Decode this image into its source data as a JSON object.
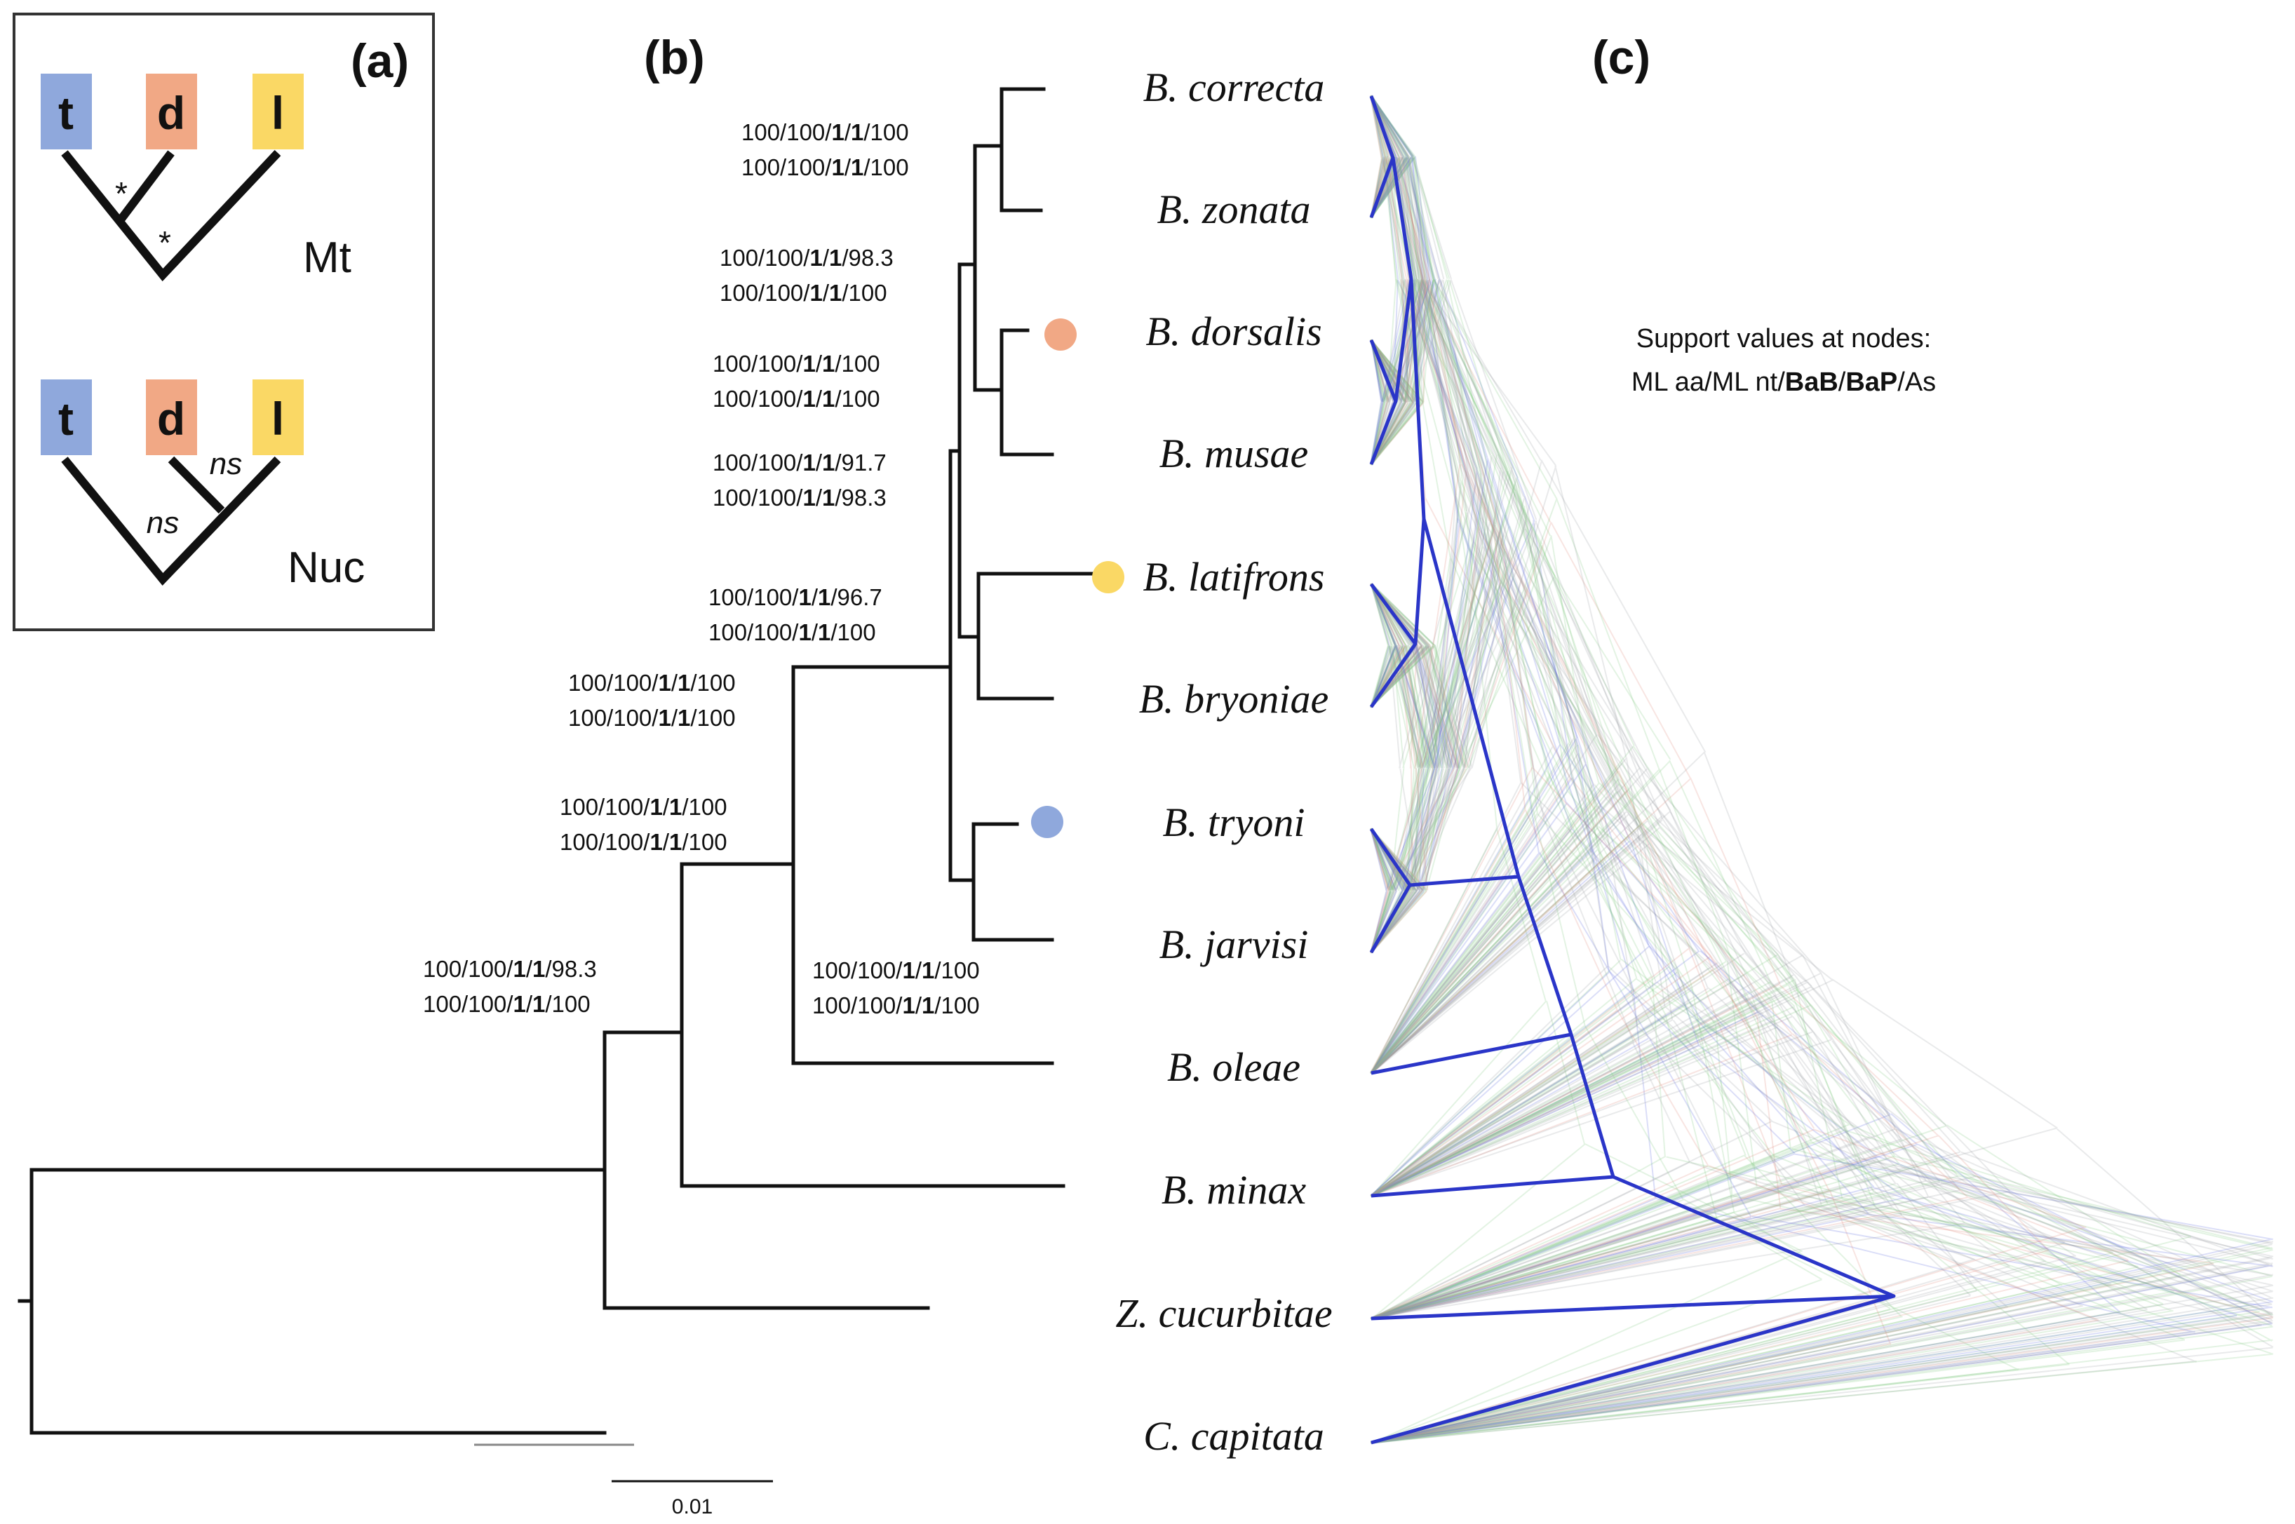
{
  "panels": {
    "a": "(a)",
    "b": "(b)",
    "c": "(c)"
  },
  "inset": {
    "mt_label": "Mt",
    "nuc_label": "Nuc",
    "boxes": [
      {
        "letter": "t",
        "color": "#8fa8dc"
      },
      {
        "letter": "d",
        "color": "#f1a885"
      },
      {
        "letter": "l",
        "color": "#fad865"
      }
    ],
    "mt_marks": [
      "*",
      "*"
    ],
    "nuc_marks": [
      "ns",
      "ns"
    ]
  },
  "taxa": [
    "B. correcta",
    "B. zonata",
    "B. dorsalis",
    "B. musae",
    "B. latifrons",
    "B. bryoniae",
    "B. tryoni",
    "B. jarvisi",
    "B. oleae",
    "B. minax",
    "Z. cucurbitae",
    "C. capitata"
  ],
  "supports": [
    {
      "line1": [
        "100/100/",
        "1",
        "/",
        "1",
        "/100"
      ],
      "line2": [
        "100/100/",
        "1",
        "/",
        "1",
        "/100"
      ]
    },
    {
      "line1": [
        "100/100/",
        "1",
        "/",
        "1",
        "/98.3"
      ],
      "line2": [
        "100/100/",
        "1",
        "/",
        "1",
        "/100"
      ]
    },
    {
      "line1": [
        "100/100/",
        "1",
        "/",
        "1",
        "/100"
      ],
      "line2": [
        "100/100/",
        "1",
        "/",
        "1",
        "/100"
      ]
    },
    {
      "line1": [
        "100/100/",
        "1",
        "/",
        "1",
        "/91.7"
      ],
      "line2": [
        "100/100/",
        "1",
        "/",
        "1",
        "/98.3"
      ]
    },
    {
      "line1": [
        "100/100/",
        "1",
        "/",
        "1",
        "/96.7"
      ],
      "line2": [
        "100/100/",
        "1",
        "/",
        "1",
        "/100"
      ]
    },
    {
      "line1": [
        "100/100/",
        "1",
        "/",
        "1",
        "/100"
      ],
      "line2": [
        "100/100/",
        "1",
        "/",
        "1",
        "/100"
      ]
    },
    {
      "line1": [
        "100/100/",
        "1",
        "/",
        "1",
        "/100"
      ],
      "line2": [
        "100/100/",
        "1",
        "/",
        "1",
        "/100"
      ]
    },
    {
      "line1": [
        "100/100/",
        "1",
        "/",
        "1",
        "/98.3"
      ],
      "line2": [
        "100/100/",
        "1",
        "/",
        "1",
        "/100"
      ]
    },
    {
      "line1": [
        "100/100/",
        "1",
        "/",
        "1",
        "/100"
      ],
      "line2": [
        "100/100/",
        "1",
        "/",
        "1",
        "/100"
      ]
    }
  ],
  "legend": {
    "title": "Support values at nodes:",
    "parts": [
      "ML aa/ML nt/",
      "BaB",
      "/",
      "BaP",
      "/As"
    ]
  },
  "scale_bar": "0.01",
  "marker_colors": {
    "dorsalis": "#f1a885",
    "latifrons": "#fad865",
    "tryoni": "#8fa8dc"
  }
}
